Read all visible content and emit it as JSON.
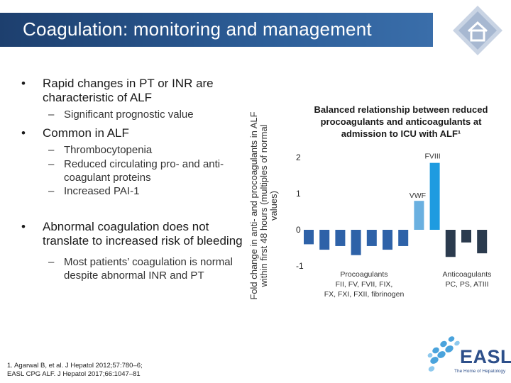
{
  "header": {
    "title": "Coagulation: monitoring and management",
    "home_icon": "home-icon"
  },
  "bullets": [
    {
      "text": "Rapid changes in PT or INR are characteristic of ALF",
      "subs": [
        "Significant prognostic value"
      ]
    },
    {
      "text": "Common in ALF",
      "subs": [
        "Thrombocytopenia",
        "Reduced circulating pro- and anti-coagulant proteins",
        "Increased PAI-1"
      ]
    },
    {
      "text": "Abnormal coagulation does not translate to increased risk of bleeding",
      "subs": [
        "Most patients’ coagulation is normal despite abnormal INR and PT"
      ]
    }
  ],
  "chart_data": {
    "type": "bar",
    "title": "Balanced relationship between reduced procoagulants and anticoagulants at admission to ICU with ALF¹",
    "ylabel": "Fold change in anti- and procoagulants in ALF within first 48 hours (multiples of normal values)",
    "ylim": [
      -1,
      2
    ],
    "yticks": [
      "2",
      "1",
      "0",
      "-1"
    ],
    "bar_values": [
      -0.4,
      -0.55,
      -0.45,
      -0.7,
      -0.45,
      -0.55,
      -0.45,
      0.8,
      1.85,
      -0.75,
      -0.35,
      -0.65
    ],
    "bar_labels": {
      "vwf": "VWF",
      "fviii": "FVIII"
    },
    "group_labels": {
      "procoagulants": [
        "Procoagulants",
        "FII, FV, FVII, FIX,",
        "FX, FXI, FXII, fibrinogen"
      ],
      "anticoagulants": [
        "Anticoagulants",
        "PC, PS, ATIII"
      ]
    },
    "colors": {
      "procoagulant": "#2e62a8",
      "vwf": "#6ab0e0",
      "fviii": "#1e9be0",
      "anticoagulant": "#2b3b4e"
    }
  },
  "references": [
    "1. Agarwal B, et al. J Hepatol 2012;57:780–6;",
    "EASL CPG ALF. J Hepatol 2017;66:1047–81"
  ],
  "logo": {
    "name": "EASL",
    "tagline": "The Home of Hepatology"
  }
}
